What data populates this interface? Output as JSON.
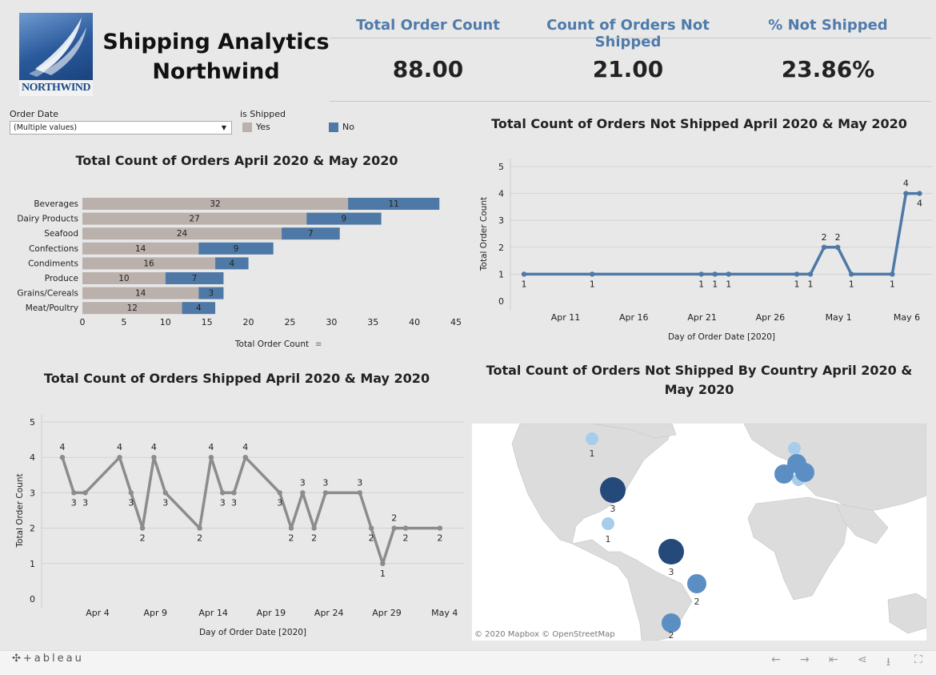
{
  "header": {
    "logo_text": "NORTHWIND",
    "title_line1": "Shipping Analytics",
    "title_line2": "Northwind"
  },
  "kpis": [
    {
      "label": "Total Order Count",
      "value": "88.00"
    },
    {
      "label": "Count of Orders Not Shipped",
      "value": "21.00"
    },
    {
      "label": "% Not Shipped",
      "value": "23.86%"
    }
  ],
  "filters": {
    "order_date_label": "Order Date",
    "order_date_value": "(Multiple values)",
    "is_shipped_label": "is Shipped",
    "legend": [
      {
        "label": "Yes",
        "color": "#bab0ac"
      },
      {
        "label": "No",
        "color": "#4e79a7"
      }
    ]
  },
  "colors": {
    "yes": "#bab0ac",
    "no": "#4e79a7",
    "shipped_line": "#8c8c8c",
    "notshipped_line": "#4e79a7"
  },
  "chart_data": [
    {
      "type": "bar",
      "title": "Total Count of Orders April 2020 & May 2020",
      "xlabel": "Total Order Count",
      "categories": [
        "Beverages",
        "Dairy Products",
        "Seafood",
        "Confections",
        "Condiments",
        "Produce",
        "Grains/Cereals",
        "Meat/Poultry"
      ],
      "series": [
        {
          "name": "Yes",
          "values": [
            32,
            27,
            24,
            14,
            16,
            10,
            14,
            12
          ]
        },
        {
          "name": "No",
          "values": [
            11,
            9,
            7,
            9,
            4,
            7,
            3,
            4
          ]
        }
      ],
      "xlim": [
        0,
        45
      ],
      "xticks": [
        "0",
        "5",
        "10",
        "15",
        "20",
        "25",
        "30",
        "35",
        "40",
        "45"
      ],
      "stacked": true
    },
    {
      "type": "line",
      "title": "Total Count of Orders Not Shipped April 2020 & May 2020",
      "xlabel": "Day of Order Date [2020]",
      "ylabel": "Total Order Count",
      "x": [
        "2020-04-07",
        "2020-04-12",
        "2020-04-20",
        "2020-04-21",
        "2020-04-22",
        "2020-04-27",
        "2020-04-28",
        "2020-04-29",
        "2020-04-30",
        "2020-05-01",
        "2020-05-04",
        "2020-05-05",
        "2020-05-06"
      ],
      "values": [
        1,
        1,
        1,
        1,
        1,
        1,
        1,
        2,
        2,
        1,
        1,
        4,
        4
      ],
      "point_labels": [
        "1",
        "1",
        "1",
        "1",
        "1",
        "1",
        "1",
        "2",
        "2",
        "1",
        "1",
        "4",
        "4"
      ],
      "ylim": [
        0,
        5
      ],
      "yticks": [
        "0",
        "1",
        "2",
        "3",
        "4",
        "5"
      ],
      "xticks": [
        "Apr 11",
        "Apr 16",
        "Apr 21",
        "Apr 26",
        "May 1",
        "May 6"
      ]
    },
    {
      "type": "line",
      "title": "Total Count of Orders Shipped April 2020 & May 2020",
      "xlabel": "Day of Order Date [2020]",
      "ylabel": "Total Order Count",
      "x": [
        "2020-04-01",
        "2020-04-02",
        "2020-04-03",
        "2020-04-06",
        "2020-04-07",
        "2020-04-08",
        "2020-04-09",
        "2020-04-10",
        "2020-04-13",
        "2020-04-14",
        "2020-04-15",
        "2020-04-16",
        "2020-04-17",
        "2020-04-20",
        "2020-04-21",
        "2020-04-22",
        "2020-04-23",
        "2020-04-24",
        "2020-04-27",
        "2020-04-28",
        "2020-04-29",
        "2020-04-30",
        "2020-05-01",
        "2020-05-04"
      ],
      "values": [
        4,
        3,
        3,
        4,
        3,
        2,
        4,
        3,
        2,
        4,
        3,
        3,
        4,
        3,
        2,
        3,
        2,
        3,
        3,
        2,
        1,
        2,
        2,
        2
      ],
      "point_labels": [
        "4",
        "3",
        "3",
        "4",
        "3",
        "2",
        "4",
        "3",
        "2",
        "4",
        "3",
        "3",
        "4",
        "3",
        "2",
        "3",
        "2",
        "3",
        "3",
        "2",
        "1",
        "2",
        "2",
        "2"
      ],
      "ylim": [
        0,
        5
      ],
      "yticks": [
        "0",
        "1",
        "2",
        "3",
        "4",
        "5"
      ],
      "xticks": [
        "Apr 4",
        "Apr 9",
        "Apr 14",
        "Apr 19",
        "Apr 24",
        "Apr 29",
        "May 4"
      ]
    }
  ],
  "map": {
    "title": "Total Count of Orders Not Shipped By Country April 2020 & May 2020",
    "attribution": "© 2020 Mapbox  © OpenStreetMap",
    "markers": [
      {
        "label": "1",
        "value": 1
      },
      {
        "label": "3",
        "value": 3
      },
      {
        "label": "1",
        "value": 1
      },
      {
        "label": "3",
        "value": 3
      },
      {
        "label": "2",
        "value": 2
      },
      {
        "label": "2",
        "value": 2
      }
    ]
  },
  "footer": {
    "brand": "+ableau"
  }
}
